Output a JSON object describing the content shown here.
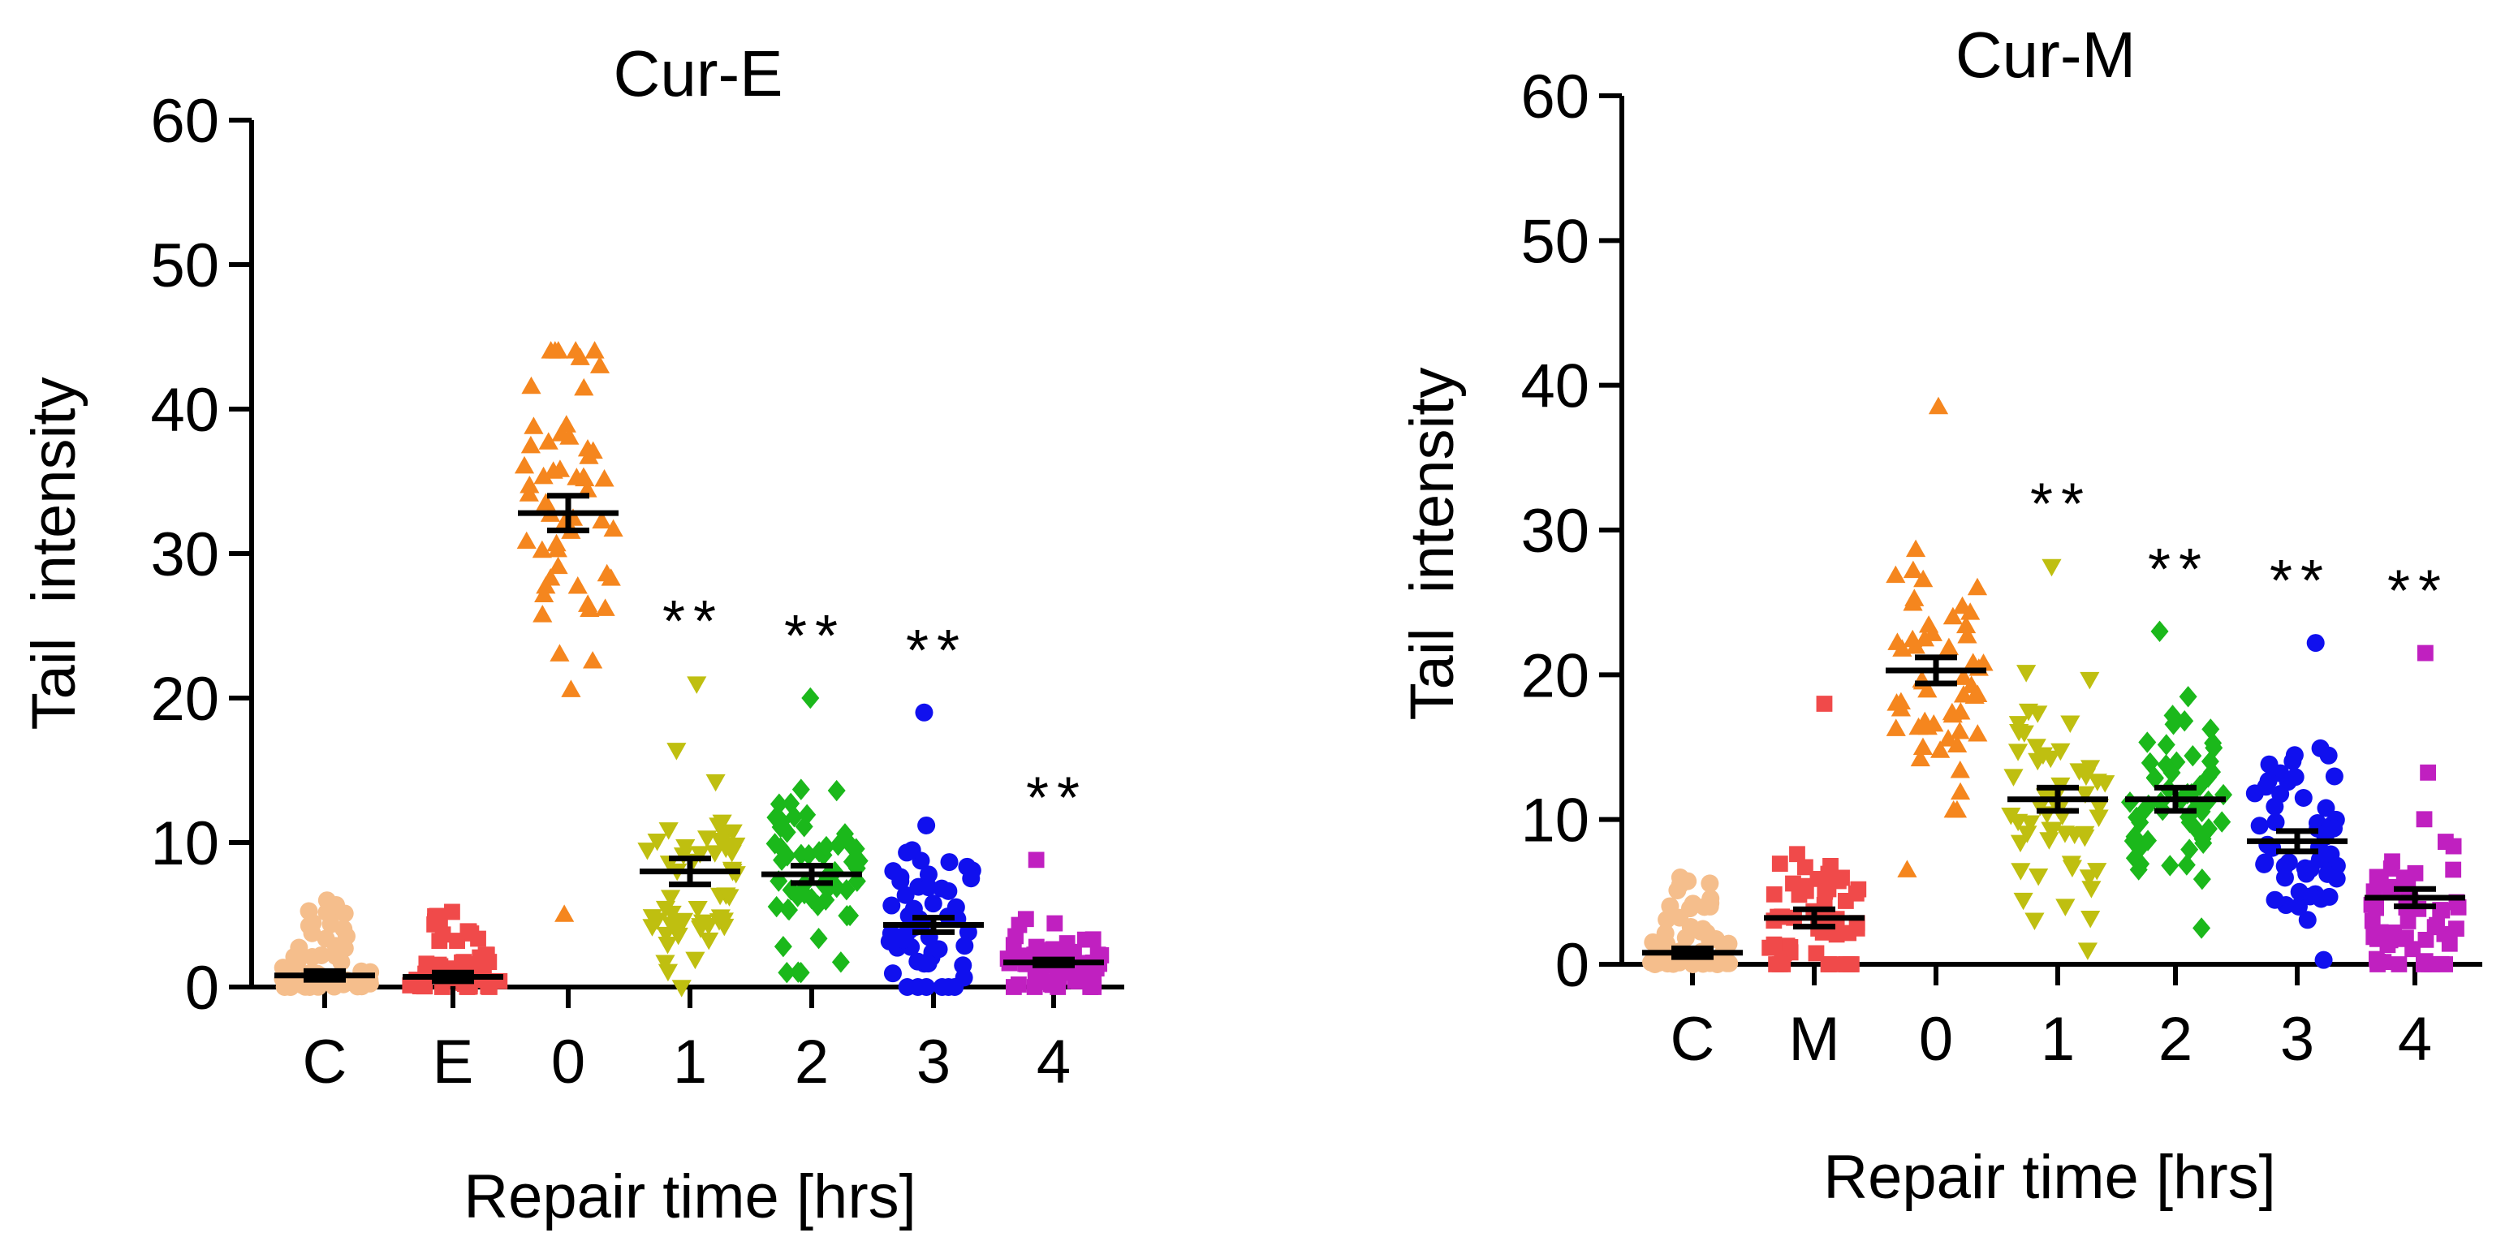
{
  "chart_data": [
    {
      "type": "scatter",
      "title": "Cur-E",
      "xlabel": "Repair time [hrs]",
      "ylabel": "Tail  intensity",
      "ylim": [
        0,
        60
      ],
      "yticks": [
        0,
        10,
        20,
        30,
        40,
        50,
        60
      ],
      "groups": [
        {
          "label": "C",
          "color": "#F5BE8C",
          "marker": "circle",
          "mean": 0.8,
          "sem": 0.3,
          "min": 0.0,
          "max": 6.0,
          "significance": ""
        },
        {
          "label": "E",
          "color": "#F04A4A",
          "marker": "square",
          "mean": 0.7,
          "sem": 0.3,
          "min": 0.0,
          "max": 5.2,
          "significance": ""
        },
        {
          "label": "0",
          "color": "#F5861E",
          "marker": "triangle",
          "mean": 32.8,
          "sem": 1.2,
          "min": 5.0,
          "max": 44.0,
          "significance": ""
        },
        {
          "label": "1",
          "color": "#BFBF10",
          "marker": "triangle-down",
          "mean": 8.0,
          "sem": 0.9,
          "min": 0.0,
          "max": 21.0,
          "significance": "**"
        },
        {
          "label": "2",
          "color": "#1BB81B",
          "marker": "diamond",
          "mean": 7.8,
          "sem": 0.6,
          "min": 1.0,
          "max": 20.0,
          "significance": "**"
        },
        {
          "label": "3",
          "color": "#1010EE",
          "marker": "circle",
          "mean": 4.3,
          "sem": 0.5,
          "min": 0.0,
          "max": 19.0,
          "significance": "**"
        },
        {
          "label": "4",
          "color": "#C020C0",
          "marker": "square",
          "mean": 1.7,
          "sem": 0.2,
          "min": 0.0,
          "max": 8.8,
          "significance": "**"
        }
      ]
    },
    {
      "type": "scatter",
      "title": "Cur-M",
      "xlabel": "Repair time [hrs]",
      "ylabel": "Tail  intensity",
      "ylim": [
        0,
        60
      ],
      "yticks": [
        0,
        10,
        20,
        30,
        40,
        50,
        60
      ],
      "groups": [
        {
          "label": "C",
          "color": "#F5BE8C",
          "marker": "circle",
          "mean": 0.8,
          "sem": 0.3,
          "min": 0.0,
          "max": 6.0,
          "significance": ""
        },
        {
          "label": "M",
          "color": "#F04A4A",
          "marker": "square",
          "mean": 3.2,
          "sem": 0.6,
          "min": 0.0,
          "max": 18.0,
          "significance": ""
        },
        {
          "label": "0",
          "color": "#F5861E",
          "marker": "triangle",
          "mean": 20.3,
          "sem": 0.9,
          "min": 6.5,
          "max": 38.5,
          "significance": ""
        },
        {
          "label": "1",
          "color": "#BFBF10",
          "marker": "triangle-down",
          "mean": 11.4,
          "sem": 0.8,
          "min": 1.0,
          "max": 27.5,
          "significance": "**"
        },
        {
          "label": "2",
          "color": "#1BB81B",
          "marker": "diamond",
          "mean": 11.4,
          "sem": 0.8,
          "min": 2.5,
          "max": 23.0,
          "significance": "**"
        },
        {
          "label": "3",
          "color": "#1010EE",
          "marker": "circle",
          "mean": 8.5,
          "sem": 0.7,
          "min": 0.3,
          "max": 22.2,
          "significance": "**"
        },
        {
          "label": "4",
          "color": "#C020C0",
          "marker": "square",
          "mean": 4.6,
          "sem": 0.6,
          "min": 0.0,
          "max": 21.5,
          "significance": "**"
        }
      ]
    }
  ]
}
